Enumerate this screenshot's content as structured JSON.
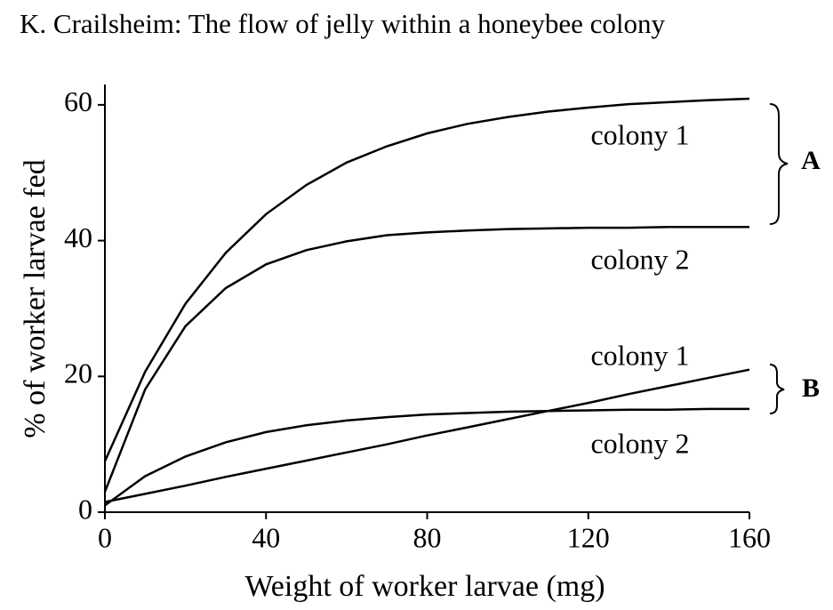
{
  "header": {
    "title": "K. Crailsheim: The flow of jelly within a honeybee colony"
  },
  "chart_data": {
    "type": "line",
    "x_label": "Weight of worker larvae (mg)",
    "y_label": "% of worker larvae fed",
    "x": [
      0,
      10,
      20,
      30,
      40,
      50,
      60,
      70,
      80,
      90,
      100,
      110,
      120,
      130,
      140,
      150,
      160
    ],
    "series": [
      {
        "name": "colony 1",
        "color": "#000000",
        "values": [
          7.5,
          20.7,
          30.7,
          38.2,
          43.9,
          48.2,
          51.5,
          53.9,
          55.8,
          57.2,
          58.2,
          59.0,
          59.6,
          60.1,
          60.4,
          60.7,
          60.9
        ]
      },
      {
        "name": "colony 2",
        "color": "#000000",
        "values": [
          3,
          18.1,
          27.4,
          33.0,
          36.5,
          38.6,
          39.9,
          40.8,
          41.2,
          41.5,
          41.7,
          41.8,
          41.9,
          41.9,
          42,
          42,
          42
        ]
      },
      {
        "name": "colony 1",
        "color": "#000000",
        "values": [
          1.5,
          2.7,
          3.9,
          5.2,
          6.4,
          7.6,
          8.8,
          10.0,
          11.3,
          12.5,
          13.7,
          14.9,
          16.1,
          17.4,
          18.6,
          19.8,
          21.0
        ]
      },
      {
        "name": "colony 2",
        "color": "#000000",
        "values": [
          1,
          5.3,
          8.2,
          10.3,
          11.8,
          12.8,
          13.5,
          14.0,
          14.4,
          14.6,
          14.8,
          14.9,
          15.0,
          15.1,
          15.1,
          15.2,
          15.2
        ]
      }
    ],
    "groups": [
      "A",
      "B"
    ],
    "xlim": [
      0,
      160
    ],
    "ylim": [
      0,
      63
    ],
    "xticks": [
      0,
      40,
      80,
      120,
      160
    ],
    "yticks": [
      0,
      20,
      40,
      60
    ],
    "grid": false
  }
}
